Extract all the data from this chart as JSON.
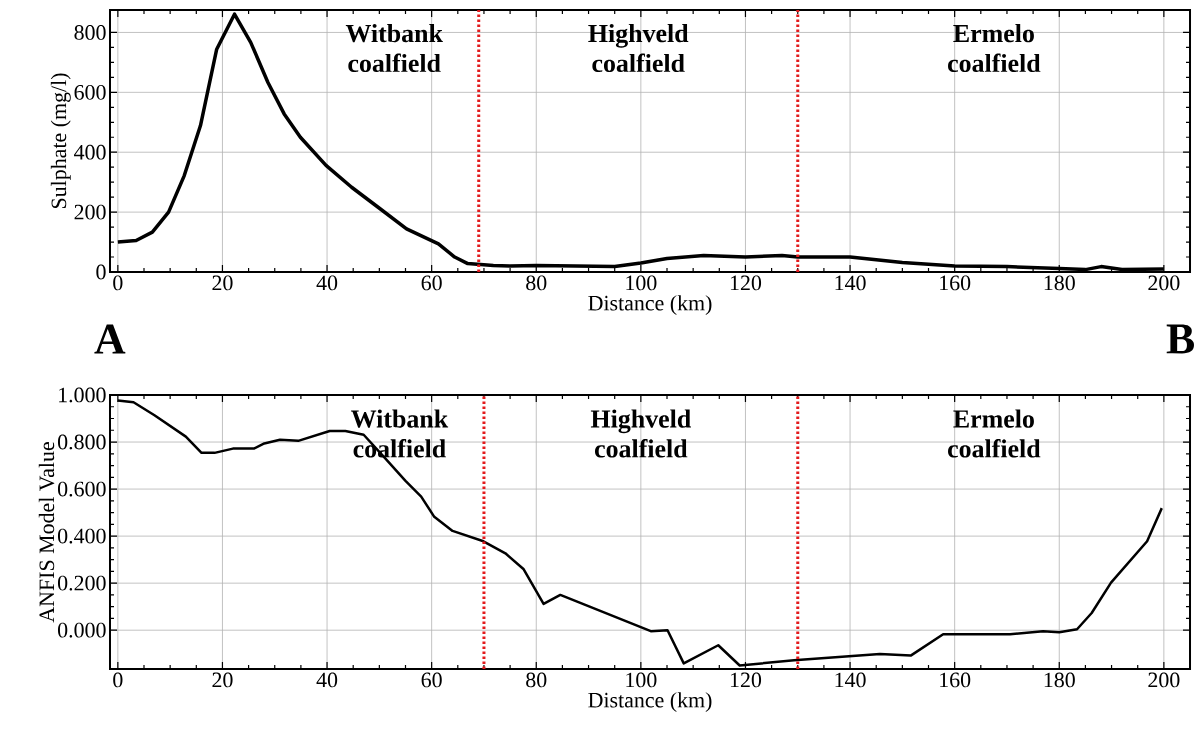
{
  "chart_data": [
    {
      "type": "line",
      "xlabel": "Distance (km)",
      "ylabel": "Sulphate (mg/l)",
      "xlim": [
        -1.5,
        205
      ],
      "ylim": [
        0,
        875
      ],
      "xticks": [
        0,
        20,
        40,
        60,
        80,
        100,
        120,
        140,
        160,
        180,
        200
      ],
      "yticks": [
        0,
        200,
        400,
        600,
        800
      ],
      "grid": true,
      "marker": "none",
      "line_style": "solid",
      "series": [
        {
          "color": "#000000",
          "x": [
            0,
            3.5,
            6.6,
            9.7,
            12.7,
            15.8,
            18.9,
            22.3,
            25.4,
            28.7,
            31.8,
            34.9,
            39.8,
            44.7,
            49.7,
            55.2,
            61.3,
            64.4,
            66.9,
            71.8,
            75,
            80,
            95,
            100,
            105,
            112,
            120,
            127,
            130,
            140,
            150,
            160,
            170,
            180,
            185,
            188,
            192,
            200
          ],
          "values": [
            100,
            105,
            133,
            200,
            322,
            489,
            744,
            861,
            767,
            633,
            528,
            450,
            356,
            283,
            217,
            144,
            94,
            50,
            28,
            22,
            20,
            22,
            18,
            30,
            45,
            55,
            50,
            55,
            50,
            50,
            32,
            20,
            18,
            12,
            8,
            18,
            8,
            10
          ]
        }
      ],
      "ref_lines": [
        {
          "axis": "x",
          "value": 69,
          "color": "#e31a1c",
          "line_style": "dotted"
        },
        {
          "axis": "x",
          "value": 130,
          "color": "#e31a1c",
          "line_style": "dotted"
        }
      ],
      "annotations": [
        "Witbank coalfield",
        "Highveld coalfield",
        "Ermelo coalfield",
        "A",
        "B"
      ]
    },
    {
      "type": "line",
      "xlabel": "Distance (km)",
      "ylabel": "ANFIS Model Value",
      "xlim": [
        -1.5,
        205
      ],
      "ylim": [
        -0.165,
        1.0
      ],
      "xticks": [
        0,
        20,
        40,
        60,
        80,
        100,
        120,
        140,
        160,
        180,
        200
      ],
      "yticks": [
        {
          "value": 0,
          "label": "0.000"
        },
        {
          "value": 0.2,
          "label": "0.200"
        },
        {
          "value": 0.4,
          "label": "0.400"
        },
        {
          "value": 0.6,
          "label": "0.600"
        },
        {
          "value": 0.8,
          "label": "0.800"
        },
        {
          "value": 1.0,
          "label": "1.000"
        }
      ],
      "grid": true,
      "marker": "none",
      "line_style": "solid",
      "series": [
        {
          "color": "#000000",
          "x": [
            0,
            3,
            7,
            13,
            16,
            18.5,
            22,
            26,
            28,
            31,
            34.5,
            40.5,
            43.5,
            47,
            51,
            55,
            58,
            60.5,
            64,
            69.9,
            74.1,
            77.6,
            81.4,
            84.6,
            101.9,
            105.1,
            108.2,
            114.8,
            118.9,
            129.3,
            145.7,
            151.6,
            157.8,
            170.6,
            176.9,
            180,
            183.4,
            186.2,
            189.9,
            196.8,
            199.6
          ],
          "values": [
            0.977,
            0.969,
            0.914,
            0.823,
            0.754,
            0.754,
            0.772,
            0.772,
            0.794,
            0.81,
            0.805,
            0.847,
            0.847,
            0.831,
            0.734,
            0.635,
            0.568,
            0.482,
            0.422,
            0.378,
            0.327,
            0.259,
            0.112,
            0.15,
            -0.004,
            0.0,
            -0.141,
            -0.064,
            -0.15,
            -0.128,
            -0.101,
            -0.108,
            -0.017,
            -0.017,
            -0.004,
            -0.009,
            0.004,
            0.073,
            0.202,
            0.378,
            0.519
          ]
        }
      ],
      "ref_lines": [
        {
          "axis": "x",
          "value": 70,
          "color": "#e31a1c",
          "line_style": "dotted"
        },
        {
          "axis": "x",
          "value": 130,
          "color": "#e31a1c",
          "line_style": "dotted"
        }
      ],
      "annotations": [
        "Witbank coalfield",
        "Highveld coalfield",
        "Ermelo coalfield"
      ]
    }
  ]
}
